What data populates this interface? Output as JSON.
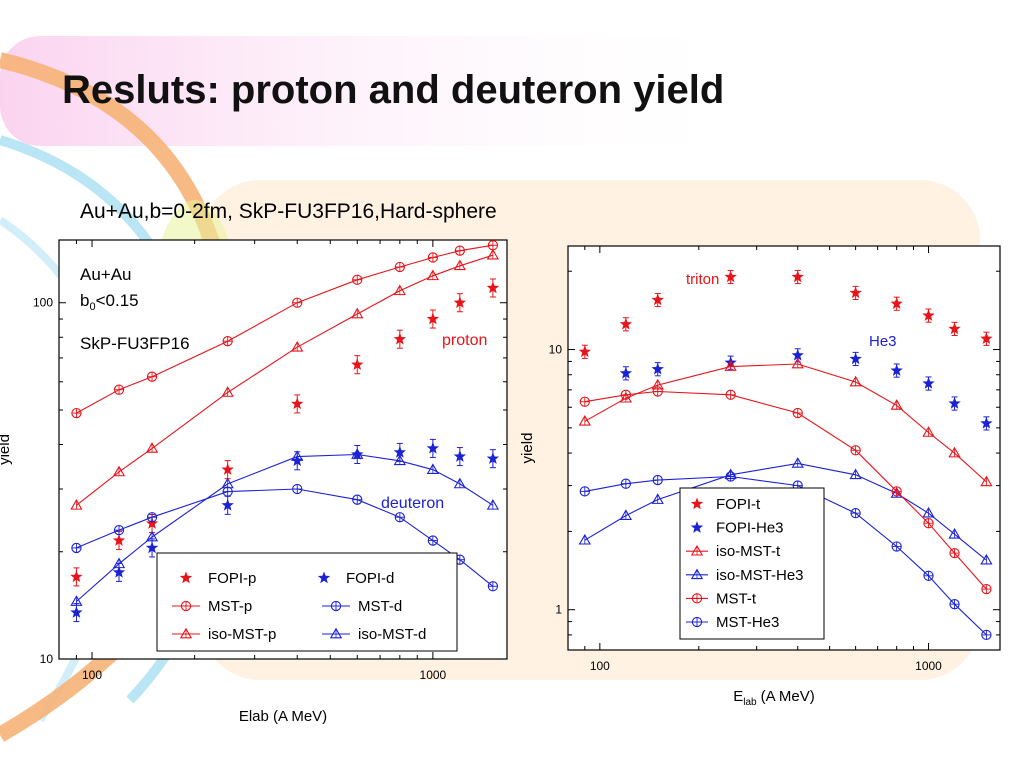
{
  "slide": {
    "title": "Resluts: proton and deuteron yield",
    "subtitle": "Au+Au,b=0-2fm, SkP-FU3FP16,Hard-sphere"
  },
  "colors": {
    "red": "#e8141a",
    "blue": "#1b22d6"
  },
  "chart_data": [
    {
      "type": "scatter",
      "xscale": "log",
      "yscale": "log",
      "xlim": [
        80,
        1650
      ],
      "ylim": [
        10,
        150
      ],
      "xlabel": "Elab (A MeV)",
      "ylabel": "yield",
      "xticks": [
        100,
        1000
      ],
      "yticks": [
        10,
        100
      ],
      "annotations": [
        "Au+Au",
        "<0.15",
        "SkP-FU3FP16"
      ],
      "annotation_b": "b",
      "annotation_sub": "0",
      "panel_labels": [
        {
          "text": "proton",
          "color": "red"
        },
        {
          "text": "deuteron",
          "color": "blue"
        }
      ],
      "legend": "bottom-right",
      "series": [
        {
          "name": "FOPI-p",
          "color": "red",
          "marker": "star",
          "line": false,
          "x": [
            90,
            120,
            150,
            250,
            400,
            600,
            800,
            1000,
            1200,
            1500
          ],
          "y": [
            17,
            21.5,
            24,
            34,
            52,
            67,
            79,
            90,
            100,
            110
          ]
        },
        {
          "name": "FOPI-d",
          "color": "blue",
          "marker": "star",
          "line": false,
          "x": [
            90,
            120,
            150,
            250,
            400,
            600,
            800,
            1000,
            1200,
            1500
          ],
          "y": [
            13.5,
            17.5,
            20.5,
            27,
            36,
            37.5,
            38,
            39,
            37,
            36.5
          ]
        },
        {
          "name": "MST-p",
          "color": "red",
          "marker": "circle",
          "line": true,
          "x": [
            90,
            120,
            150,
            250,
            400,
            600,
            800,
            1000,
            1200,
            1500
          ],
          "y": [
            49,
            57,
            62,
            78,
            100,
            116,
            126,
            134,
            140,
            145
          ]
        },
        {
          "name": "MST-d",
          "color": "blue",
          "marker": "circle",
          "line": true,
          "x": [
            90,
            120,
            150,
            250,
            400,
            600,
            800,
            1000,
            1200,
            1500
          ],
          "y": [
            20.5,
            23,
            25,
            29.5,
            30,
            28,
            25,
            21.5,
            19,
            16
          ]
        },
        {
          "name": "iso-MST-p",
          "color": "red",
          "marker": "triangle",
          "line": true,
          "x": [
            90,
            120,
            150,
            250,
            400,
            600,
            800,
            1000,
            1200,
            1500
          ],
          "y": [
            27,
            33.5,
            39,
            56,
            75,
            93,
            108,
            119,
            127,
            136
          ]
        },
        {
          "name": "iso-MST-d",
          "color": "blue",
          "marker": "triangle",
          "line": true,
          "x": [
            90,
            120,
            150,
            250,
            400,
            600,
            800,
            1000,
            1200,
            1500
          ],
          "y": [
            14.5,
            18.5,
            22,
            31,
            37,
            37.5,
            36,
            34,
            31,
            27
          ]
        }
      ]
    },
    {
      "type": "scatter",
      "xscale": "log",
      "yscale": "log",
      "xlim": [
        80,
        1650
      ],
      "ylim": [
        0.7,
        25
      ],
      "xlabel": "E",
      "xlabel_sub": "lab",
      "xlabel_rest": "(A MeV)",
      "ylabel": "yield",
      "xticks": [
        100,
        1000
      ],
      "yticks": [
        1,
        10
      ],
      "panel_labels": [
        {
          "text": "triton",
          "color": "red"
        },
        {
          "text": "He3",
          "color": "blue"
        }
      ],
      "legend": "bottom-right",
      "series": [
        {
          "name": "FOPI-t",
          "color": "red",
          "marker": "star",
          "line": false,
          "x": [
            90,
            120,
            150,
            250,
            400,
            600,
            800,
            1000,
            1200,
            1500
          ],
          "y": [
            9.8,
            12.5,
            15.5,
            19,
            19,
            16.5,
            15,
            13.5,
            12,
            11
          ]
        },
        {
          "name": "FOPI-He3",
          "color": "blue",
          "marker": "star",
          "line": false,
          "x": [
            120,
            150,
            250,
            400,
            600,
            800,
            1000,
            1200,
            1500
          ],
          "y": [
            8.1,
            8.4,
            8.9,
            9.5,
            9.2,
            8.3,
            7.4,
            6.2,
            5.2
          ]
        },
        {
          "name": "iso-MST-t",
          "color": "red",
          "marker": "triangle",
          "line": true,
          "x": [
            90,
            120,
            150,
            250,
            400,
            600,
            800,
            1000,
            1200,
            1500
          ],
          "y": [
            5.3,
            6.5,
            7.3,
            8.6,
            8.8,
            7.5,
            6.1,
            4.8,
            4.0,
            3.1
          ]
        },
        {
          "name": "iso-MST-He3",
          "color": "blue",
          "marker": "triangle",
          "line": true,
          "x": [
            90,
            120,
            150,
            250,
            400,
            600,
            800,
            1000,
            1200,
            1500
          ],
          "y": [
            1.85,
            2.3,
            2.65,
            3.3,
            3.65,
            3.3,
            2.8,
            2.35,
            1.95,
            1.55
          ]
        },
        {
          "name": "MST-t",
          "color": "red",
          "marker": "circle",
          "line": true,
          "x": [
            90,
            120,
            150,
            250,
            400,
            600,
            800,
            1000,
            1200,
            1500
          ],
          "y": [
            6.3,
            6.7,
            6.9,
            6.7,
            5.7,
            4.1,
            2.85,
            2.15,
            1.65,
            1.2
          ]
        },
        {
          "name": "MST-He3",
          "color": "blue",
          "marker": "circle",
          "line": true,
          "x": [
            90,
            120,
            150,
            250,
            400,
            600,
            800,
            1000,
            1200,
            1500
          ],
          "y": [
            2.85,
            3.05,
            3.15,
            3.25,
            3.0,
            2.35,
            1.75,
            1.35,
            1.05,
            0.8
          ]
        }
      ]
    }
  ]
}
